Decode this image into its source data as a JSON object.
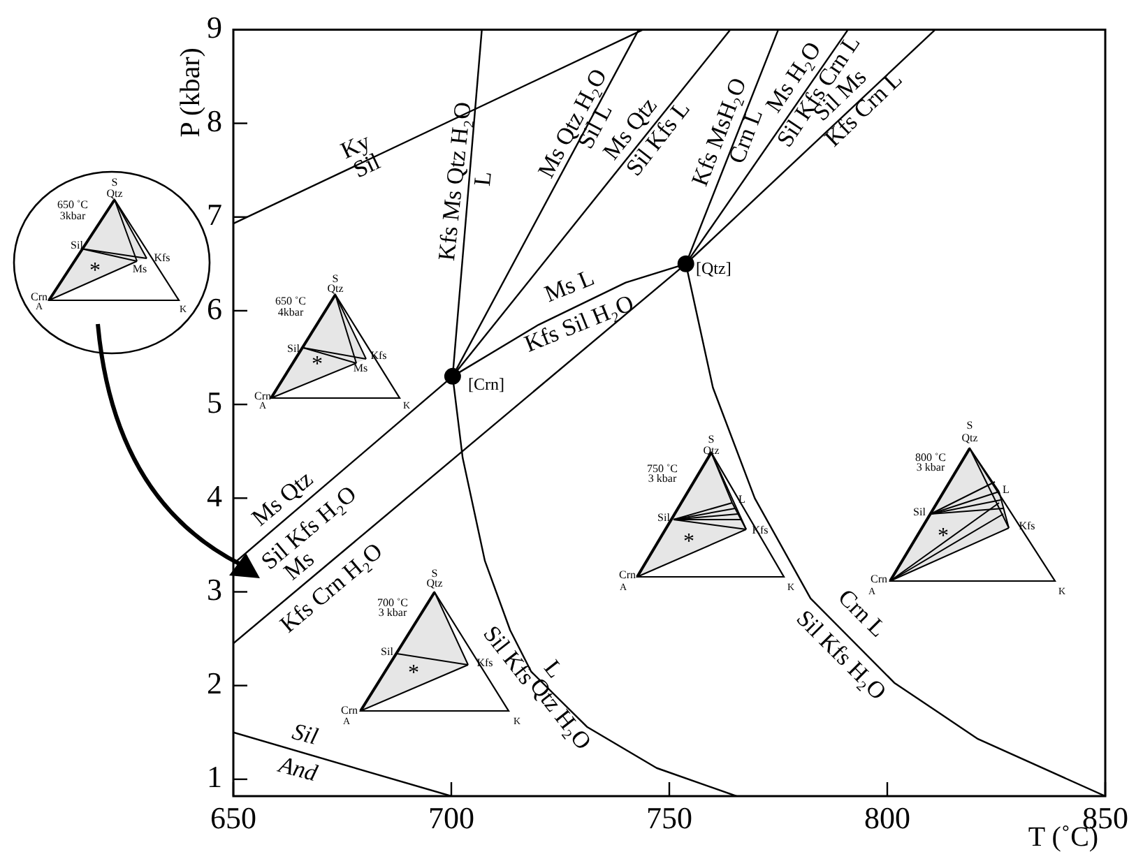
{
  "chart_data": {
    "type": "line",
    "xlabel": "T (˚C)",
    "ylabel": "P (kbar)",
    "xlim": [
      650,
      850
    ],
    "ylim": [
      0.82,
      9
    ],
    "xticks": [
      650,
      700,
      750,
      800,
      850
    ],
    "yticks": [
      1,
      2,
      3,
      4,
      5,
      6,
      7,
      8,
      9
    ],
    "grid": false,
    "marker": "none",
    "line_style": "solid",
    "series": [
      {
        "color": "#000000",
        "x": [
          650,
          744
        ],
        "values": [
          6.93,
          9
        ]
      },
      {
        "color": "#000000",
        "x": [
          650,
          700
        ],
        "values": [
          1.5,
          0.82
        ]
      },
      {
        "color": "#000000",
        "x": [
          700.3,
          707
        ],
        "values": [
          5.3,
          9
        ]
      },
      {
        "color": "#000000",
        "x": [
          700.3,
          702.6,
          707.7,
          713.5,
          718.3,
          731.1,
          747.1,
          765.4
        ],
        "values": [
          5.3,
          4.43,
          3.33,
          2.59,
          2.15,
          1.56,
          1.12,
          0.82
        ]
      },
      {
        "color": "#000000",
        "x": [
          700.3,
          743
        ],
        "values": [
          5.3,
          9
        ]
      },
      {
        "color": "#000000",
        "x": [
          700.3,
          764
        ],
        "values": [
          5.3,
          9
        ]
      },
      {
        "color": "#000000",
        "x": [
          700.3,
          720,
          740,
          753.8
        ],
        "values": [
          5.3,
          5.85,
          6.3,
          6.5
        ]
      },
      {
        "color": "#000000",
        "x": [
          650,
          700.3
        ],
        "values": [
          3.3,
          5.3
        ]
      },
      {
        "color": "#000000",
        "x": [
          650,
          753.8
        ],
        "values": [
          2.45,
          6.5
        ]
      },
      {
        "color": "#000000",
        "x": [
          753.8,
          775
        ],
        "values": [
          6.5,
          9
        ]
      },
      {
        "color": "#000000",
        "x": [
          753.8,
          791
        ],
        "values": [
          6.5,
          9
        ]
      },
      {
        "color": "#000000",
        "x": [
          753.8,
          811
        ],
        "values": [
          6.5,
          9
        ]
      },
      {
        "color": "#000000",
        "x": [
          753.8,
          760,
          769.6,
          782.4,
          801.6,
          820.8,
          850
        ],
        "values": [
          6.5,
          5.18,
          4.0,
          2.93,
          2.03,
          1.43,
          0.82
        ]
      },
      {
        "type": "scatter",
        "marker": "circle",
        "color": "#000000",
        "x": [
          700.3,
          753.8
        ],
        "values": [
          5.3,
          6.5
        ]
      }
    ],
    "annotations": [
      "Ky",
      "Sil",
      "Kfs Ms Qtz H₂O",
      "L",
      "Ms Qtz H₂O",
      "Sil L",
      "Ms Qtz",
      "Sil Kfs L",
      "Kfs  MsH₂O",
      "Crn L",
      "Ms H₂O",
      "Sil Kfs Crn L",
      "Sil Ms",
      "Kfs Crn L",
      "Ms L",
      "Kfs Sil H₂O",
      "Ms Qtz",
      "Sil Kfs H₂O",
      "Ms",
      "Kfs Crn H₂O",
      "Sil Kfs",
      "L",
      "Qtz H₂O",
      "Crn L",
      "Sil Kfs H₂O",
      "Sil",
      "And",
      "[Crn]",
      "[Qtz]",
      "S",
      "Qtz",
      "650 ˚C",
      "3kbar",
      "Sil",
      "Kfs",
      "Ms",
      "Crn",
      "A",
      "K",
      "*",
      "S",
      "Qtz",
      "650 ˚C",
      "4kbar",
      "Sil",
      "Kfs",
      "Ms",
      "Crn",
      "A",
      "K",
      "*",
      "S",
      "Qtz",
      "700 ˚C",
      "3 kbar",
      "Sil",
      "Kfs",
      "Crn",
      "A",
      "K",
      "*",
      "S",
      "Qtz",
      "750 ˚C",
      "3 kbar",
      "L",
      "Sil",
      "Kfs",
      "Crn",
      "A",
      "K",
      "*",
      "S",
      "Qtz",
      "800 ˚C",
      "3 kbar",
      "L",
      "Sil",
      "Kfs",
      "Crn",
      "A",
      "K",
      "*"
    ]
  }
}
